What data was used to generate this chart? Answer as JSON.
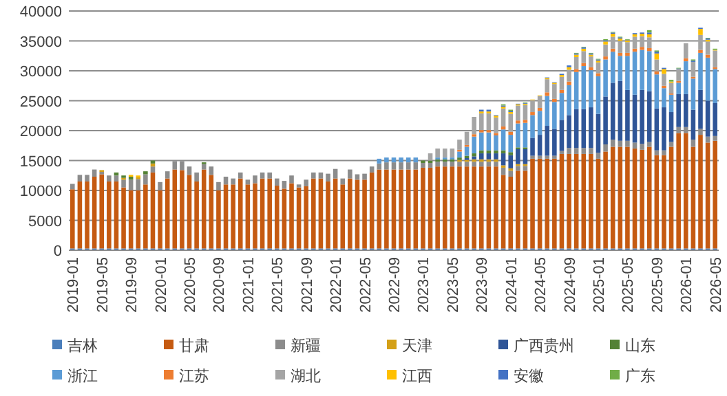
{
  "chart_data": {
    "type": "bar",
    "stacked": true,
    "categories": [
      "2019-01",
      null,
      null,
      null,
      "2019-05",
      null,
      null,
      null,
      "2019-09",
      null,
      null,
      null,
      "2020-01",
      null,
      null,
      null,
      "2020-05",
      null,
      null,
      null,
      "2020-09",
      null,
      null,
      null,
      "2021-01",
      null,
      null,
      null,
      "2021-05",
      null,
      null,
      null,
      "2021-09",
      null,
      null,
      null,
      "2022-01",
      null,
      null,
      null,
      "2022-05",
      null,
      null,
      null,
      "2022-09",
      null,
      null,
      null,
      "2023-01",
      null,
      null,
      null,
      "2023-05",
      null,
      null,
      null,
      "2023-09",
      null,
      null,
      null,
      "2024-01",
      null,
      null,
      null,
      "2024-05",
      null,
      null,
      null,
      "2024-09",
      null,
      null,
      null,
      "2025-01",
      null,
      null,
      null,
      "2025-05",
      null,
      null,
      null,
      "2025-09",
      null,
      null,
      null,
      "2026-01",
      null,
      null,
      null,
      "2026-05"
    ],
    "ylim": [
      0,
      40000
    ],
    "yticks": [
      0,
      5000,
      10000,
      15000,
      20000,
      25000,
      30000,
      35000,
      40000
    ],
    "grid": "y",
    "legend": "bottom",
    "series": [
      {
        "name": "吉林",
        "color": "#4a7ebb",
        "values": [
          300,
          300,
          300,
          300,
          300,
          300,
          300,
          300,
          300,
          300,
          300,
          300,
          300,
          300,
          300,
          300,
          300,
          300,
          300,
          300,
          300,
          300,
          300,
          300,
          300,
          300,
          300,
          300,
          300,
          300,
          300,
          300,
          300,
          300,
          300,
          300,
          300,
          300,
          300,
          300,
          300,
          300,
          300,
          300,
          300,
          300,
          300,
          300,
          300,
          300,
          300,
          300,
          300,
          300,
          300,
          300,
          300,
          300,
          300,
          300,
          300,
          300,
          300,
          300,
          300,
          300,
          300,
          300,
          300,
          300,
          300,
          300,
          300,
          300,
          300,
          300,
          300,
          300,
          300,
          300,
          300,
          300,
          300,
          300,
          300,
          300,
          300,
          300,
          300
        ]
      },
      {
        "name": "甘肃",
        "color": "#c55a11",
        "values": [
          9900,
          11200,
          11200,
          12000,
          12400,
          11200,
          11200,
          10200,
          9700,
          9700,
          10700,
          12700,
          9700,
          11700,
          13200,
          13100,
          12300,
          11200,
          13200,
          12300,
          9700,
          10700,
          10700,
          11700,
          10700,
          10900,
          11700,
          11700,
          10500,
          10000,
          10900,
          10200,
          10400,
          11700,
          11700,
          11200,
          11700,
          10700,
          11700,
          11500,
          11500,
          12700,
          13200,
          13200,
          13200,
          13200,
          13200,
          13200,
          13500,
          13500,
          13700,
          13700,
          13700,
          13700,
          13700,
          13700,
          13700,
          13700,
          13700,
          12300,
          12000,
          13000,
          13000,
          15000,
          15000,
          15000,
          15000,
          15800,
          15800,
          15800,
          15800,
          15800,
          15000,
          16200,
          17000,
          17000,
          17000,
          16700,
          16500,
          17000,
          15600,
          15600,
          17000,
          19300,
          19300,
          17000,
          19000,
          17700,
          18000
        ]
      },
      {
        "name": "新疆",
        "color": "#8c8c8c",
        "values": [
          900,
          1100,
          1100,
          1200,
          400,
          1000,
          1000,
          1300,
          1800,
          1900,
          1700,
          1000,
          1400,
          1200,
          1400,
          1500,
          1400,
          1500,
          900,
          1400,
          1400,
          1300,
          1000,
          1000,
          800,
          1300,
          1000,
          1000,
          1200,
          1300,
          1300,
          500,
          1100,
          1000,
          1000,
          1300,
          1600,
          1000,
          1500,
          900,
          1000,
          1000,
          1000,
          1200,
          1200,
          1200,
          1200,
          1200,
          800,
          800,
          800,
          800,
          800,
          800,
          800,
          800,
          800,
          800,
          800,
          1200,
          1000,
          800,
          800,
          500,
          500,
          500,
          500,
          500,
          1000,
          1000,
          1000,
          1000,
          1000,
          1200,
          1200,
          1000,
          1000,
          1000,
          1000,
          800,
          800,
          800,
          800,
          1000,
          1000,
          1200,
          1000,
          1000,
          800
        ]
      },
      {
        "name": "天津",
        "color": "#d4a017",
        "values": [
          0,
          0,
          0,
          0,
          300,
          0,
          0,
          300,
          0,
          300,
          0,
          500,
          0,
          0,
          0,
          0,
          0,
          0,
          0,
          0,
          0,
          0,
          0,
          0,
          0,
          0,
          0,
          0,
          0,
          0,
          0,
          0,
          0,
          0,
          0,
          0,
          0,
          0,
          0,
          0,
          0,
          0,
          0,
          0,
          0,
          0,
          0,
          0,
          0,
          0,
          0,
          0,
          0,
          300,
          300,
          400,
          400,
          400,
          400,
          400,
          400,
          300,
          300,
          0,
          0,
          0,
          0,
          0,
          0,
          0,
          0,
          0,
          0,
          0,
          0,
          0,
          0,
          0,
          0,
          0,
          0,
          0,
          0,
          0,
          0,
          0,
          0,
          0,
          0
        ]
      },
      {
        "name": "广西贵州",
        "color": "#2f5597",
        "values": [
          0,
          0,
          0,
          0,
          0,
          0,
          0,
          0,
          0,
          0,
          0,
          0,
          0,
          0,
          0,
          0,
          0,
          0,
          0,
          0,
          0,
          0,
          0,
          0,
          0,
          0,
          0,
          0,
          0,
          0,
          0,
          0,
          0,
          0,
          0,
          0,
          0,
          0,
          0,
          0,
          0,
          0,
          0,
          0,
          0,
          0,
          0,
          0,
          0,
          0,
          0,
          0,
          0,
          0,
          300,
          500,
          1000,
          1000,
          1000,
          2000,
          2200,
          2500,
          2500,
          3000,
          3500,
          5000,
          4500,
          5200,
          5500,
          6500,
          6500,
          6800,
          6500,
          8000,
          9500,
          10000,
          8500,
          8000,
          9000,
          8500,
          7000,
          7200,
          5000,
          5500,
          5500,
          5000,
          6500,
          6000,
          5500
        ]
      },
      {
        "name": "山东",
        "color": "#548235",
        "values": [
          0,
          0,
          0,
          0,
          0,
          0,
          500,
          400,
          500,
          0,
          500,
          500,
          0,
          0,
          0,
          0,
          0,
          0,
          300,
          0,
          0,
          0,
          0,
          0,
          0,
          0,
          0,
          0,
          0,
          0,
          0,
          0,
          0,
          0,
          0,
          0,
          0,
          0,
          0,
          0,
          0,
          0,
          0,
          0,
          0,
          0,
          0,
          0,
          400,
          400,
          400,
          400,
          400,
          400,
          400,
          500,
          500,
          500,
          500,
          500,
          500,
          300,
          300,
          0,
          0,
          0,
          0,
          0,
          0,
          0,
          0,
          0,
          0,
          0,
          0,
          0,
          0,
          0,
          0,
          0,
          0,
          0,
          0,
          0,
          0,
          0,
          0,
          0,
          0
        ]
      },
      {
        "name": "浙江",
        "color": "#5b9bd5",
        "values": [
          0,
          0,
          0,
          0,
          0,
          0,
          0,
          0,
          0,
          0,
          0,
          0,
          0,
          0,
          0,
          0,
          0,
          0,
          0,
          0,
          0,
          0,
          0,
          0,
          0,
          0,
          0,
          0,
          0,
          0,
          0,
          0,
          0,
          0,
          0,
          0,
          0,
          0,
          0,
          0,
          0,
          0,
          800,
          800,
          800,
          800,
          800,
          800,
          0,
          0,
          300,
          300,
          300,
          1000,
          1500,
          2800,
          3000,
          3000,
          2500,
          3500,
          2900,
          4000,
          4100,
          3800,
          4000,
          5000,
          4500,
          4500,
          5000,
          6200,
          7200,
          6200,
          6300,
          6200,
          5200,
          4200,
          5700,
          7200,
          6700,
          6700,
          5700,
          3200,
          2900,
          1900,
          5500,
          5200,
          6200,
          7200,
          5700
        ]
      },
      {
        "name": "江苏",
        "color": "#ed7d31",
        "values": [
          0,
          0,
          0,
          0,
          0,
          0,
          0,
          0,
          0,
          0,
          0,
          0,
          0,
          0,
          0,
          0,
          0,
          0,
          0,
          0,
          0,
          0,
          0,
          0,
          0,
          0,
          0,
          0,
          0,
          0,
          0,
          0,
          0,
          0,
          0,
          0,
          0,
          0,
          0,
          0,
          0,
          0,
          0,
          0,
          0,
          0,
          0,
          0,
          0,
          0,
          0,
          0,
          0,
          300,
          300,
          400,
          400,
          400,
          400,
          500,
          500,
          500,
          500,
          500,
          500,
          600,
          500,
          500,
          600,
          500,
          500,
          500,
          500,
          500,
          500,
          500,
          500,
          500,
          500,
          500,
          500,
          400,
          200,
          300,
          500,
          300,
          500,
          500,
          300
        ]
      },
      {
        "name": "湖北",
        "color": "#a5a5a5",
        "values": [
          0,
          0,
          0,
          0,
          0,
          0,
          0,
          0,
          0,
          0,
          0,
          0,
          0,
          0,
          0,
          0,
          0,
          0,
          0,
          0,
          0,
          0,
          0,
          0,
          0,
          0,
          0,
          0,
          0,
          0,
          0,
          0,
          0,
          0,
          0,
          0,
          0,
          0,
          0,
          0,
          0,
          0,
          0,
          0,
          0,
          0,
          0,
          0,
          0,
          1200,
          1500,
          1500,
          1500,
          1700,
          2200,
          2900,
          2800,
          2800,
          2600,
          3000,
          3000,
          2500,
          2500,
          2000,
          2000,
          2200,
          2500,
          2200,
          2000,
          2000,
          2000,
          1800,
          1800,
          2000,
          2000,
          2000,
          1800,
          2000,
          1800,
          1800,
          2000,
          2000,
          1800,
          2000,
          2500,
          2500,
          2500,
          2200,
          2800
        ]
      },
      {
        "name": "江西",
        "color": "#ffc000",
        "values": [
          0,
          0,
          0,
          0,
          0,
          0,
          0,
          0,
          300,
          300,
          0,
          0,
          0,
          0,
          0,
          0,
          0,
          0,
          0,
          0,
          0,
          0,
          0,
          0,
          0,
          0,
          0,
          0,
          0,
          0,
          0,
          0,
          0,
          0,
          0,
          0,
          0,
          0,
          0,
          0,
          0,
          0,
          0,
          0,
          0,
          0,
          0,
          0,
          0,
          0,
          0,
          0,
          0,
          0,
          0,
          0,
          300,
          300,
          300,
          300,
          300,
          200,
          200,
          100,
          100,
          200,
          200,
          300,
          400,
          400,
          400,
          300,
          300,
          500,
          500,
          400,
          300,
          400,
          400,
          500,
          1000,
          800,
          200,
          0,
          0,
          0,
          1000,
          300,
          100
        ]
      },
      {
        "name": "安徽",
        "color": "#4472c4",
        "values": [
          0,
          0,
          0,
          0,
          0,
          0,
          0,
          0,
          0,
          0,
          0,
          0,
          0,
          0,
          0,
          0,
          0,
          0,
          0,
          0,
          0,
          0,
          0,
          0,
          0,
          0,
          0,
          0,
          0,
          0,
          0,
          0,
          0,
          0,
          0,
          0,
          0,
          0,
          0,
          0,
          0,
          0,
          0,
          0,
          0,
          0,
          0,
          0,
          0,
          0,
          0,
          0,
          0,
          0,
          0,
          0,
          300,
          300,
          100,
          200,
          200,
          100,
          100,
          0,
          0,
          100,
          100,
          200,
          300,
          200,
          200,
          200,
          200,
          200,
          200,
          200,
          100,
          200,
          200,
          300,
          300,
          200,
          0,
          100,
          null,
          200,
          200,
          200,
          0
        ]
      },
      {
        "name": "广东",
        "color": "#70ad47",
        "values": [
          0,
          0,
          0,
          0,
          0,
          0,
          0,
          0,
          0,
          0,
          0,
          0,
          0,
          0,
          0,
          0,
          0,
          0,
          0,
          0,
          0,
          0,
          0,
          0,
          0,
          0,
          0,
          0,
          0,
          0,
          0,
          0,
          0,
          0,
          0,
          0,
          0,
          0,
          0,
          0,
          0,
          0,
          0,
          0,
          0,
          0,
          0,
          0,
          0,
          0,
          0,
          0,
          0,
          0,
          0,
          0,
          0,
          0,
          0,
          200,
          200,
          null,
          100,
          0,
          0,
          0,
          0,
          0,
          0,
          100,
          100,
          100,
          100,
          200,
          100,
          100,
          100,
          0,
          0,
          400,
          200,
          0,
          300,
          100,
          0,
          200,
          0,
          100,
          200
        ]
      }
    ]
  }
}
